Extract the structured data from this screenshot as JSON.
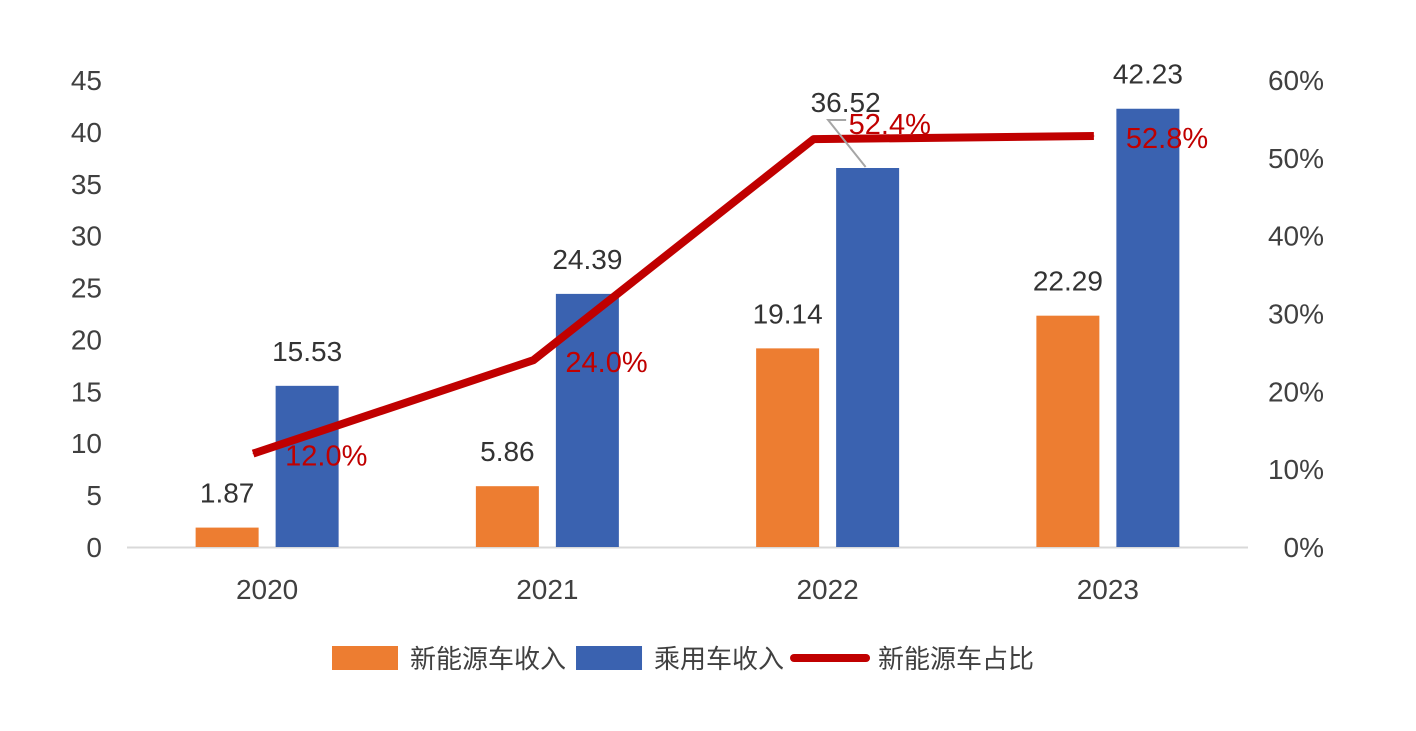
{
  "chart_data": {
    "type": "bar",
    "categories": [
      "2020",
      "2021",
      "2022",
      "2023"
    ],
    "series": [
      {
        "name": "新能源车收入",
        "kind": "bar",
        "axis": "left",
        "color": "#ed7d31",
        "values": [
          1.87,
          5.86,
          19.14,
          22.29
        ],
        "labels": [
          "1.87",
          "5.86",
          "19.14",
          "22.29"
        ]
      },
      {
        "name": "乘用车收入",
        "kind": "bar",
        "axis": "left",
        "color": "#3a62b0",
        "values": [
          15.53,
          24.39,
          36.52,
          42.23
        ],
        "labels": [
          "15.53",
          "24.39",
          "36.52",
          "42.23"
        ]
      },
      {
        "name": "新能源车占比",
        "kind": "line",
        "axis": "right",
        "color": "#c00000",
        "values": [
          0.12,
          0.24,
          0.524,
          0.528
        ],
        "labels": [
          "12.0%",
          "24.0%",
          "52.4%",
          "52.8%"
        ]
      }
    ],
    "y_left": {
      "min": 0,
      "max": 45,
      "ticks": [
        "0",
        "5",
        "10",
        "15",
        "20",
        "25",
        "30",
        "35",
        "40",
        "45"
      ]
    },
    "y_right": {
      "min": 0,
      "max": 0.6,
      "ticks": [
        "0%",
        "10%",
        "20%",
        "30%",
        "40%",
        "50%",
        "60%"
      ]
    },
    "title": "",
    "xlabel": "",
    "ylabel": "",
    "legend_position": "bottom",
    "grid": false
  }
}
